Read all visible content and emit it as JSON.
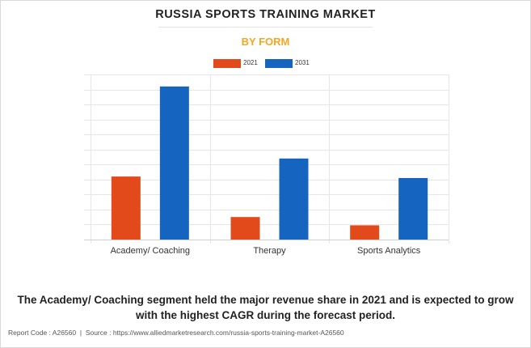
{
  "title": "RUSSIA SPORTS TRAINING MARKET",
  "subtitle": "BY FORM",
  "summary": "The Academy/ Coaching segment held the major revenue share in 2021 and is expected to grow with the highest CAGR during the forecast period.",
  "footer": {
    "report_code": "Report Code : A26560",
    "separator": "|",
    "source": "Source : https://www.alliedmarketresearch.com/russia-sports-training-market-A26560"
  },
  "chart_data": {
    "type": "bar",
    "categories": [
      "Academy/ Coaching",
      "Therapy",
      "Sports Analytics"
    ],
    "series": [
      {
        "name": "2021",
        "color": "#e24a1c",
        "values": [
          4.2,
          1.5,
          0.95
        ]
      },
      {
        "name": "2031",
        "color": "#1565c0",
        "values": [
          10.2,
          5.4,
          4.1
        ]
      }
    ],
    "ylim": [
      0,
      11
    ],
    "y_gridlines": 11,
    "y_tick_labels_shown": false,
    "grid": true,
    "legend": "top-center"
  }
}
